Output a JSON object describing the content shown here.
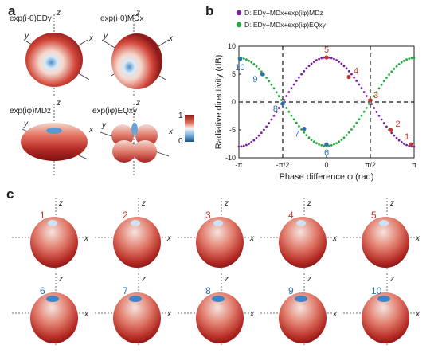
{
  "panel_letters": {
    "a": "a",
    "b": "b",
    "c": "c"
  },
  "panel_a": {
    "plots": [
      {
        "title": "exp(i·0)EDy",
        "axes": {
          "z": "z",
          "y": "y",
          "x": "x"
        }
      },
      {
        "title": "exp(i·0)MDx",
        "axes": {
          "z": "z",
          "y": "y",
          "x": "x"
        }
      },
      {
        "title": "exp(iφ)MDz",
        "axes": {
          "z": "z",
          "y": "y",
          "x": "x"
        }
      },
      {
        "title": "exp(iφ)EQxy",
        "axes": {
          "z": "z",
          "y": "y",
          "x": "x"
        }
      }
    ],
    "colorbar": {
      "max": "1",
      "min": "0"
    }
  },
  "chart_data": {
    "type": "scatter",
    "ylabel": "Radiative directivity (dB)",
    "xlabel": "Phase difference φ (rad)",
    "xlim": [
      -3.1416,
      3.1416
    ],
    "ylim": [
      -10,
      10
    ],
    "x_ticks": [
      "-π",
      "-π/2",
      "0",
      "π/2",
      "π"
    ],
    "y_ticks": [
      "-10",
      "-5",
      "0",
      "5",
      "10"
    ],
    "legend_position": "top",
    "series": [
      {
        "name": "D: EDy+MDx+exp(iφ)MDz",
        "color": "#7a1fa2",
        "points": [
          [
            -3.1416,
            -8.0
          ],
          [
            -1.5708,
            0
          ],
          [
            0,
            8.0
          ],
          [
            1.5708,
            0
          ],
          [
            3.1416,
            -8.0
          ]
        ]
      },
      {
        "name": "D: EDy+MDx+exp(iφ)EQxy",
        "color": "#1faa3a",
        "points": [
          [
            -3.1416,
            8.0
          ],
          [
            -1.5708,
            0
          ],
          [
            0,
            -7.8
          ],
          [
            1.5708,
            0
          ],
          [
            3.1416,
            8.0
          ]
        ]
      }
    ],
    "marked_points": [
      {
        "label": "1",
        "x": 3.03,
        "y": -7.6,
        "color": "#c0392b"
      },
      {
        "label": "2",
        "x": 2.3,
        "y": -5.0,
        "color": "#c0392b"
      },
      {
        "label": "3",
        "x": 1.57,
        "y": 0.3,
        "color": "#c0392b"
      },
      {
        "label": "4",
        "x": 0.8,
        "y": 4.5,
        "color": "#c0392b"
      },
      {
        "label": "5",
        "x": 0.0,
        "y": 8.0,
        "color": "#c0392b"
      },
      {
        "label": "6",
        "x": 0.0,
        "y": -7.6,
        "color": "#2c6fb0"
      },
      {
        "label": "7",
        "x": -0.8,
        "y": -4.8,
        "color": "#2c6fb0"
      },
      {
        "label": "8",
        "x": -1.57,
        "y": -0.3,
        "color": "#2c6fb0"
      },
      {
        "label": "9",
        "x": -2.3,
        "y": 5.0,
        "color": "#2c6fb0"
      },
      {
        "label": "10",
        "x": -3.1,
        "y": 7.7,
        "color": "#2c6fb0"
      }
    ],
    "dashed_lines": {
      "vertical": [
        -1.5708,
        1.5708
      ],
      "horizontal": [
        0
      ]
    }
  },
  "panel_c": {
    "items": [
      {
        "num": "1",
        "color": "#c0392b"
      },
      {
        "num": "2",
        "color": "#c0392b"
      },
      {
        "num": "3",
        "color": "#c0392b"
      },
      {
        "num": "4",
        "color": "#c0392b"
      },
      {
        "num": "5",
        "color": "#c0392b"
      },
      {
        "num": "6",
        "color": "#2c6fb0"
      },
      {
        "num": "7",
        "color": "#2c6fb0"
      },
      {
        "num": "8",
        "color": "#2c6fb0"
      },
      {
        "num": "9",
        "color": "#2c6fb0"
      },
      {
        "num": "10",
        "color": "#2c6fb0"
      }
    ],
    "axis_labels": {
      "z": "z",
      "x": "x"
    }
  }
}
